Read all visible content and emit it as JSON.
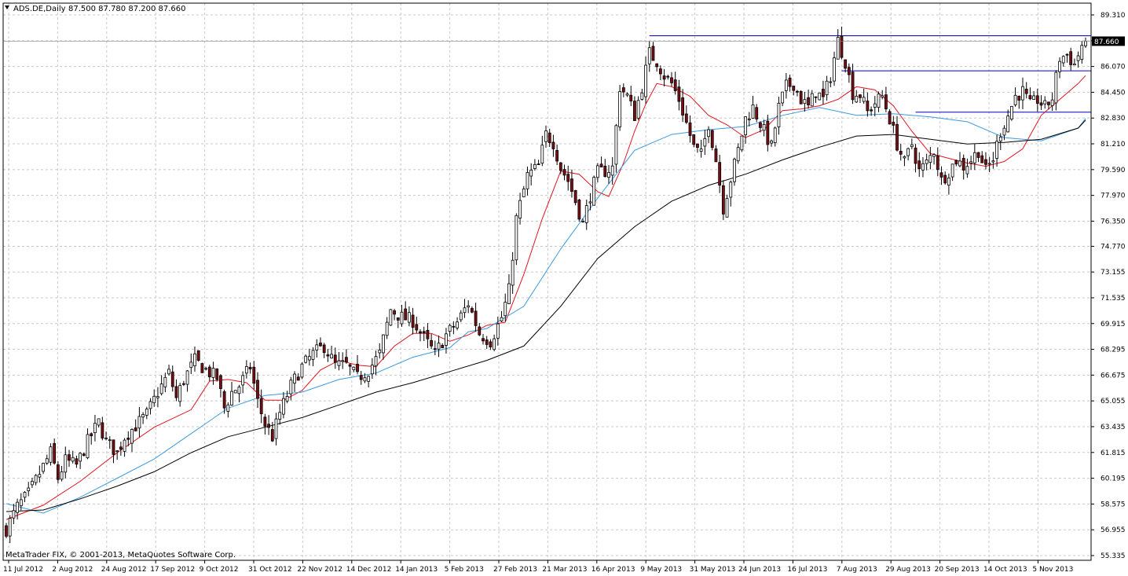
{
  "header": {
    "symbol_label": "ADS.DE,Daily",
    "ohlc_text": "87.500 87.780 87.200 87.660"
  },
  "footer": {
    "copyright": "MetaTrader FIX, © 2001-2013, MetaQuotes Software Corp."
  },
  "colors": {
    "bull": "#ffffff",
    "bear": "#7a0e12",
    "wick": "#000000",
    "ma_fast": "#e0141e",
    "ma_mid": "#3c9ae0",
    "ma_slow": "#000000",
    "levels": "#0000cc",
    "grid": "#c8c8c8",
    "price_tag_bg": "#000000"
  },
  "chart_data": {
    "type": "candlestick",
    "symbol": "ADS.DE",
    "timeframe": "Daily",
    "last_price": "87.660",
    "y_ticks": [
      "89.310",
      "87.690",
      "86.070",
      "84.450",
      "82.830",
      "81.210",
      "79.590",
      "77.970",
      "76.350",
      "74.770",
      "73.155",
      "71.535",
      "69.915",
      "68.295",
      "66.675",
      "65.055",
      "63.435",
      "61.815",
      "60.195",
      "58.575",
      "56.955",
      "55.335"
    ],
    "ylim": [
      55.335,
      89.31
    ],
    "x_ticks": [
      "11 Jul 2012",
      "2 Aug 2012",
      "24 Aug 2012",
      "17 Sep 2012",
      "9 Oct 2012",
      "31 Oct 2012",
      "22 Nov 2012",
      "14 Dec 2012",
      "14 Jan 2013",
      "5 Feb 2013",
      "27 Feb 2013",
      "21 Mar 2013",
      "16 Apr 2013",
      "9 May 2013",
      "31 May 2013",
      "24 Jun 2013",
      "16 Jul 2013",
      "7 Aug 2013",
      "29 Aug 2013",
      "20 Sep 2013",
      "14 Oct 2013",
      "5 Nov 2013"
    ],
    "close_path": [
      [
        0,
        57.0
      ],
      [
        3,
        58.4
      ],
      [
        6,
        59.2
      ],
      [
        9,
        60.5
      ],
      [
        12,
        61.8
      ],
      [
        14,
        60.2
      ],
      [
        16,
        61.3
      ],
      [
        19,
        61.0
      ],
      [
        22,
        62.5
      ],
      [
        25,
        63.7
      ],
      [
        27,
        62.5
      ],
      [
        30,
        61.8
      ],
      [
        32,
        62.8
      ],
      [
        35,
        63.5
      ],
      [
        38,
        64.2
      ],
      [
        41,
        65.6
      ],
      [
        44,
        66.8
      ],
      [
        46,
        65.2
      ],
      [
        48,
        66.4
      ],
      [
        51,
        67.6
      ],
      [
        54,
        67.0
      ],
      [
        57,
        66.5
      ],
      [
        59,
        64.6
      ],
      [
        61,
        65.6
      ],
      [
        63,
        66.0
      ],
      [
        66,
        67.2
      ],
      [
        68,
        65.0
      ],
      [
        70,
        63.6
      ],
      [
        72,
        62.8
      ],
      [
        74,
        64.3
      ],
      [
        77,
        66.0
      ],
      [
        80,
        67.2
      ],
      [
        83,
        68.0
      ],
      [
        86,
        68.5
      ],
      [
        89,
        67.3
      ],
      [
        92,
        67.3
      ],
      [
        95,
        66.5
      ],
      [
        98,
        67.0
      ],
      [
        101,
        68.0
      ],
      [
        104,
        70.8
      ],
      [
        107,
        70.3
      ],
      [
        110,
        70.1
      ],
      [
        113,
        69.0
      ],
      [
        116,
        68.0
      ],
      [
        119,
        69.2
      ],
      [
        122,
        70.0
      ],
      [
        125,
        71.2
      ],
      [
        128,
        69.3
      ],
      [
        131,
        68.8
      ],
      [
        134,
        70.3
      ],
      [
        136,
        72.0
      ],
      [
        138,
        76.5
      ],
      [
        141,
        79.2
      ],
      [
        144,
        79.8
      ],
      [
        146,
        81.8
      ],
      [
        148,
        81.3
      ],
      [
        150,
        79.7
      ],
      [
        152,
        78.9
      ],
      [
        154,
        77.6
      ],
      [
        156,
        76.2
      ],
      [
        158,
        78.0
      ],
      [
        160,
        79.4
      ],
      [
        162,
        79.5
      ],
      [
        164,
        79.7
      ],
      [
        166,
        84.8
      ],
      [
        168,
        84.2
      ],
      [
        170,
        83.0
      ],
      [
        172,
        84.8
      ],
      [
        174,
        86.9
      ],
      [
        176,
        86.4
      ],
      [
        178,
        85.5
      ],
      [
        180,
        85.0
      ],
      [
        182,
        84.0
      ],
      [
        184,
        82.5
      ],
      [
        186,
        81.0
      ],
      [
        188,
        80.5
      ],
      [
        190,
        82.5
      ],
      [
        192,
        80.2
      ],
      [
        194,
        77.2
      ],
      [
        196,
        79.0
      ],
      [
        198,
        80.8
      ],
      [
        200,
        82.8
      ],
      [
        202,
        83.5
      ],
      [
        205,
        82.0
      ],
      [
        207,
        81.0
      ],
      [
        209,
        83.5
      ],
      [
        211,
        84.8
      ],
      [
        213,
        85.0
      ],
      [
        215,
        84.0
      ],
      [
        217,
        83.5
      ],
      [
        219,
        84.5
      ],
      [
        221,
        84.0
      ],
      [
        223,
        85.5
      ],
      [
        225,
        87.7
      ],
      [
        227,
        86.4
      ],
      [
        229,
        84.4
      ],
      [
        231,
        84.3
      ],
      [
        233,
        83.2
      ],
      [
        235,
        83.8
      ],
      [
        237,
        84.2
      ],
      [
        239,
        82.8
      ],
      [
        241,
        81.2
      ],
      [
        243,
        80.0
      ],
      [
        245,
        81.2
      ],
      [
        247,
        79.5
      ],
      [
        249,
        80.0
      ],
      [
        251,
        80.8
      ],
      [
        253,
        78.9
      ],
      [
        255,
        79.5
      ],
      [
        257,
        80.2
      ],
      [
        259,
        79.8
      ],
      [
        261,
        80.2
      ],
      [
        263,
        80.8
      ],
      [
        265,
        79.5
      ],
      [
        267,
        80.3
      ],
      [
        269,
        82.0
      ],
      [
        271,
        83.0
      ],
      [
        273,
        84.2
      ],
      [
        275,
        84.5
      ],
      [
        277,
        83.6
      ],
      [
        279,
        84.0
      ],
      [
        281,
        83.5
      ],
      [
        283,
        84.1
      ],
      [
        285,
        86.6
      ],
      [
        287,
        86.8
      ],
      [
        289,
        86.2
      ],
      [
        291,
        87.4
      ],
      [
        292,
        87.66
      ]
    ],
    "series": [
      {
        "name": "",
        "color": "#e0141e",
        "points": [
          [
            0,
            57.6
          ],
          [
            10,
            58.5
          ],
          [
            20,
            60.0
          ],
          [
            30,
            61.8
          ],
          [
            40,
            63.4
          ],
          [
            50,
            64.5
          ],
          [
            55,
            66.3
          ],
          [
            60,
            66.4
          ],
          [
            65,
            66.2
          ],
          [
            70,
            65.1
          ],
          [
            75,
            65.1
          ],
          [
            80,
            65.7
          ],
          [
            85,
            67.0
          ],
          [
            90,
            67.6
          ],
          [
            95,
            67.3
          ],
          [
            100,
            67.2
          ],
          [
            105,
            68.5
          ],
          [
            110,
            69.3
          ],
          [
            115,
            69.3
          ],
          [
            120,
            68.8
          ],
          [
            125,
            69.2
          ],
          [
            130,
            69.8
          ],
          [
            135,
            70.0
          ],
          [
            140,
            73.0
          ],
          [
            145,
            76.5
          ],
          [
            150,
            79.5
          ],
          [
            155,
            79.3
          ],
          [
            160,
            78.2
          ],
          [
            163,
            77.9
          ],
          [
            167,
            80.0
          ],
          [
            170,
            82.0
          ],
          [
            173,
            83.7
          ],
          [
            176,
            85.0
          ],
          [
            180,
            84.8
          ],
          [
            185,
            84.2
          ],
          [
            190,
            83.0
          ],
          [
            195,
            82.4
          ],
          [
            200,
            81.6
          ],
          [
            205,
            82.1
          ],
          [
            210,
            83.3
          ],
          [
            215,
            83.4
          ],
          [
            220,
            83.6
          ],
          [
            225,
            84.0
          ],
          [
            230,
            84.8
          ],
          [
            235,
            84.6
          ],
          [
            240,
            83.6
          ],
          [
            245,
            82.0
          ],
          [
            250,
            80.6
          ],
          [
            255,
            80.3
          ],
          [
            260,
            80.0
          ],
          [
            265,
            79.8
          ],
          [
            270,
            80.1
          ],
          [
            275,
            80.9
          ],
          [
            280,
            83.0
          ],
          [
            285,
            84.0
          ],
          [
            290,
            85.0
          ],
          [
            292,
            85.5
          ]
        ]
      },
      {
        "name": "",
        "color": "#3c9ae0",
        "points": [
          [
            0,
            58.6
          ],
          [
            10,
            58.0
          ],
          [
            20,
            59.0
          ],
          [
            30,
            60.2
          ],
          [
            40,
            61.4
          ],
          [
            50,
            63.0
          ],
          [
            60,
            64.6
          ],
          [
            70,
            65.4
          ],
          [
            80,
            65.6
          ],
          [
            90,
            66.4
          ],
          [
            100,
            66.8
          ],
          [
            110,
            67.8
          ],
          [
            120,
            68.4
          ],
          [
            125,
            69.4
          ],
          [
            130,
            69.6
          ],
          [
            140,
            71.0
          ],
          [
            150,
            74.6
          ],
          [
            160,
            77.8
          ],
          [
            170,
            80.8
          ],
          [
            180,
            81.8
          ],
          [
            190,
            82.1
          ],
          [
            200,
            82.3
          ],
          [
            210,
            83.0
          ],
          [
            220,
            83.5
          ],
          [
            230,
            83.0
          ],
          [
            240,
            83.1
          ],
          [
            250,
            82.9
          ],
          [
            260,
            82.6
          ],
          [
            270,
            81.6
          ],
          [
            280,
            81.4
          ],
          [
            290,
            82.2
          ],
          [
            292,
            82.8
          ]
        ]
      },
      {
        "name": "",
        "color": "#000000",
        "points": [
          [
            0,
            58.1
          ],
          [
            10,
            58.2
          ],
          [
            20,
            58.9
          ],
          [
            30,
            59.7
          ],
          [
            40,
            60.6
          ],
          [
            50,
            61.8
          ],
          [
            60,
            62.8
          ],
          [
            70,
            63.4
          ],
          [
            80,
            64.0
          ],
          [
            90,
            64.8
          ],
          [
            100,
            65.6
          ],
          [
            110,
            66.2
          ],
          [
            120,
            66.9
          ],
          [
            130,
            67.6
          ],
          [
            140,
            68.5
          ],
          [
            150,
            71.0
          ],
          [
            160,
            74.0
          ],
          [
            170,
            76.0
          ],
          [
            180,
            77.6
          ],
          [
            190,
            78.6
          ],
          [
            200,
            79.3
          ],
          [
            210,
            80.2
          ],
          [
            220,
            81.0
          ],
          [
            230,
            81.7
          ],
          [
            240,
            81.8
          ],
          [
            250,
            81.5
          ],
          [
            260,
            81.2
          ],
          [
            270,
            81.3
          ],
          [
            280,
            81.5
          ],
          [
            290,
            82.2
          ],
          [
            292,
            82.7
          ]
        ]
      }
    ],
    "levels": [
      {
        "value": 88.0,
        "from": 174,
        "to": 292
      },
      {
        "value": 85.8,
        "from": 226,
        "to": 292
      },
      {
        "value": 83.2,
        "from": 246,
        "to": 292
      }
    ]
  }
}
